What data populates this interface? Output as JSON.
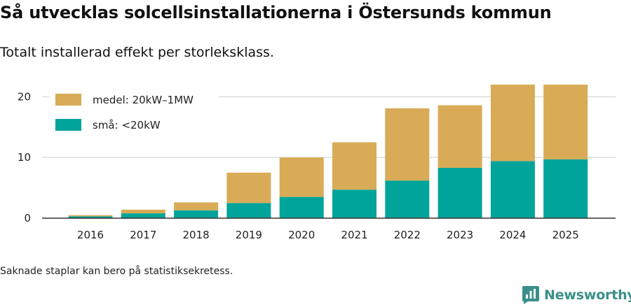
{
  "title": "Så utvecklas solcellsinstallationerna i Östersunds kommun",
  "subtitle": "Totalt installerad effekt per storleksklass.",
  "footnote": "Saknade staplar kan bero på statistiksekretess.",
  "brand": {
    "name": "Newsworthy",
    "icon": "bar-chart-logo-icon"
  },
  "colors": {
    "medel": "#d9ab56",
    "sma": "#00a49a",
    "grid": "#dddddd",
    "brand": "#3a8f8a"
  },
  "chart_data": {
    "type": "bar",
    "stacked": true,
    "categories": [
      "2016",
      "2017",
      "2018",
      "2019",
      "2020",
      "2021",
      "2022",
      "2023",
      "2024",
      "2025"
    ],
    "series": [
      {
        "name": "små: <20kW",
        "key": "sma",
        "values": [
          0.3,
          0.8,
          1.3,
          2.5,
          3.5,
          4.7,
          6.2,
          8.3,
          9.4,
          9.7
        ]
      },
      {
        "name": "medel: 20kW–1MW",
        "key": "medel",
        "values": [
          0.2,
          0.6,
          1.3,
          5.0,
          6.5,
          7.8,
          11.9,
          10.3,
          12.6,
          12.3
        ]
      }
    ],
    "legend_order": [
      "medel",
      "sma"
    ],
    "legend_position": "top-left",
    "ylim": [
      0,
      20.5
    ],
    "yticks": [
      0,
      10,
      20
    ],
    "grid": true,
    "xlabel": "",
    "ylabel": ""
  }
}
